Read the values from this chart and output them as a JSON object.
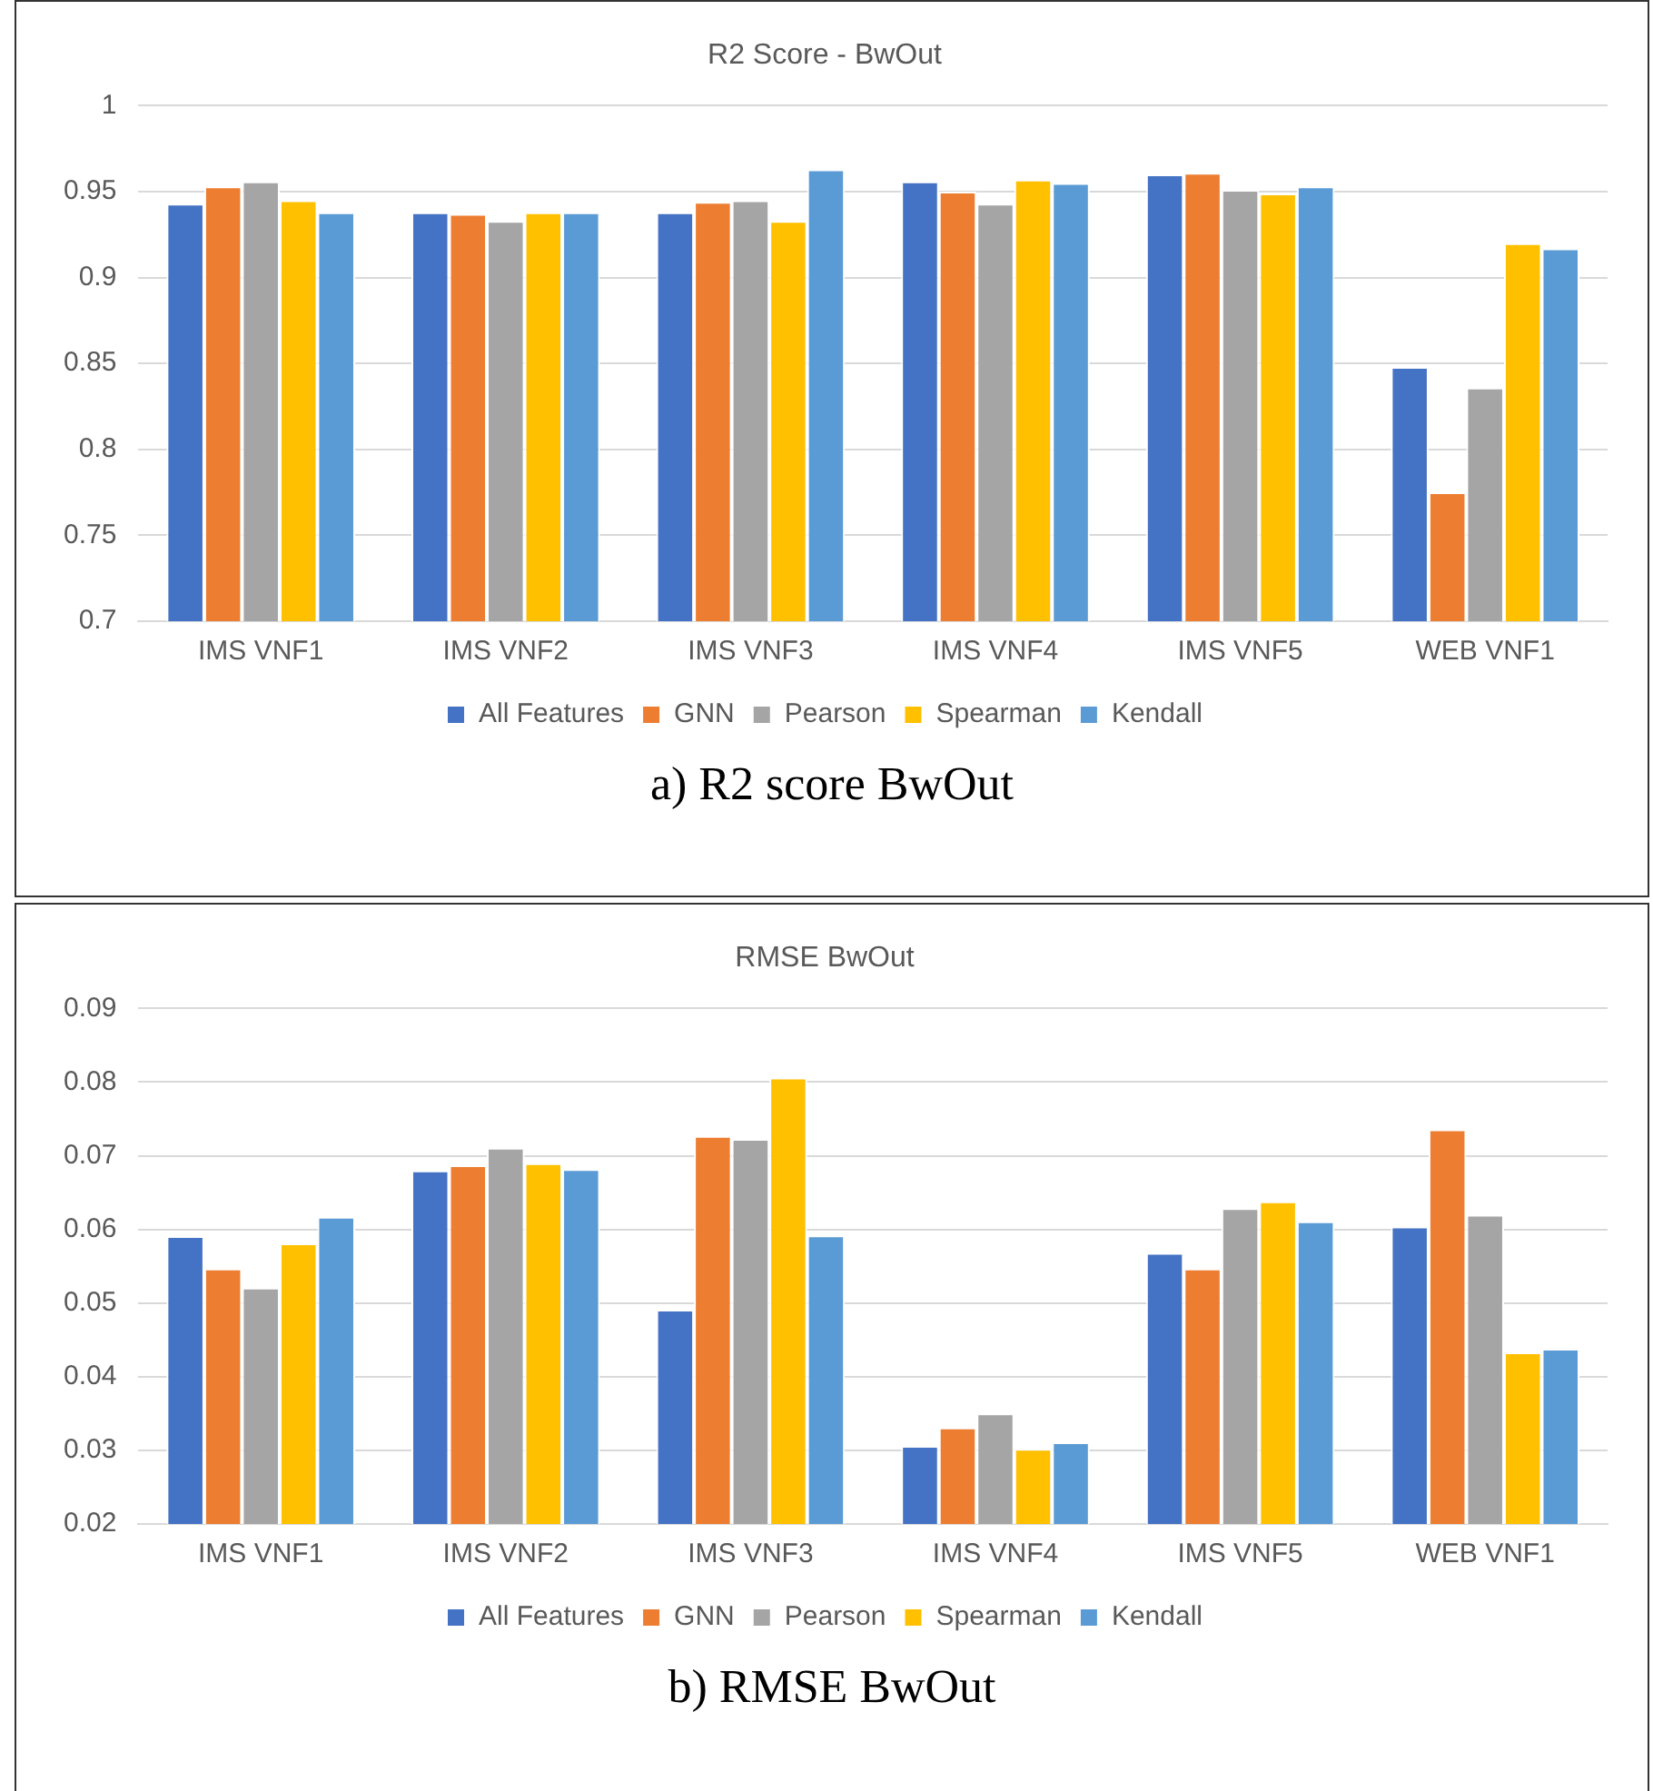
{
  "chart_data": [
    {
      "type": "bar",
      "title": "R2 Score - BwOut",
      "categories": [
        "IMS VNF1",
        "IMS VNF2",
        "IMS VNF3",
        "IMS VNF4",
        "IMS VNF5",
        "WEB VNF1"
      ],
      "series": [
        {
          "name": "All Features",
          "color": "#4472c4",
          "values": [
            0.943,
            0.938,
            0.938,
            0.956,
            0.96,
            0.848
          ]
        },
        {
          "name": "GNN",
          "color": "#ed7d31",
          "values": [
            0.953,
            0.937,
            0.944,
            0.95,
            0.961,
            0.775
          ]
        },
        {
          "name": "Pearson",
          "color": "#a5a5a5",
          "values": [
            0.956,
            0.933,
            0.945,
            0.943,
            0.951,
            0.836
          ]
        },
        {
          "name": "Spearman",
          "color": "#ffc000",
          "values": [
            0.945,
            0.938,
            0.933,
            0.957,
            0.949,
            0.92
          ]
        },
        {
          "name": "Kendall",
          "color": "#5b9bd5",
          "values": [
            0.938,
            0.938,
            0.963,
            0.955,
            0.953,
            0.917
          ]
        }
      ],
      "ylim": [
        0.7,
        1
      ],
      "yticks": [
        0.7,
        0.75,
        0.8,
        0.85,
        0.9,
        0.95,
        1
      ],
      "grid": "y",
      "legend": "bottom",
      "annotations": [
        "a) R2 score BwOut"
      ]
    },
    {
      "type": "bar",
      "title": "RMSE BwOut",
      "categories": [
        "IMS VNF1",
        "IMS VNF2",
        "IMS VNF3",
        "IMS VNF4",
        "IMS VNF5",
        "WEB VNF1"
      ],
      "series": [
        {
          "name": "All Features",
          "color": "#4472c4",
          "values": [
            0.0591,
            0.068,
            0.0491,
            0.0306,
            0.0568,
            0.0604
          ]
        },
        {
          "name": "GNN",
          "color": "#ed7d31",
          "values": [
            0.0547,
            0.0687,
            0.0727,
            0.0331,
            0.0547,
            0.0736
          ]
        },
        {
          "name": "Pearson",
          "color": "#a5a5a5",
          "values": [
            0.0521,
            0.0711,
            0.0723,
            0.035,
            0.0629,
            0.062
          ]
        },
        {
          "name": "Spearman",
          "color": "#ffc000",
          "values": [
            0.0581,
            0.069,
            0.0806,
            0.0302,
            0.0638,
            0.0433
          ]
        },
        {
          "name": "Kendall",
          "color": "#5b9bd5",
          "values": [
            0.0617,
            0.0682,
            0.0592,
            0.0311,
            0.0611,
            0.0438
          ]
        }
      ],
      "ylim": [
        0.02,
        0.09
      ],
      "yticks": [
        0.02,
        0.03,
        0.04,
        0.05,
        0.06,
        0.07,
        0.08,
        0.09
      ],
      "grid": "y",
      "legend": "bottom",
      "annotations": [
        "b) RMSE BwOut"
      ]
    }
  ]
}
